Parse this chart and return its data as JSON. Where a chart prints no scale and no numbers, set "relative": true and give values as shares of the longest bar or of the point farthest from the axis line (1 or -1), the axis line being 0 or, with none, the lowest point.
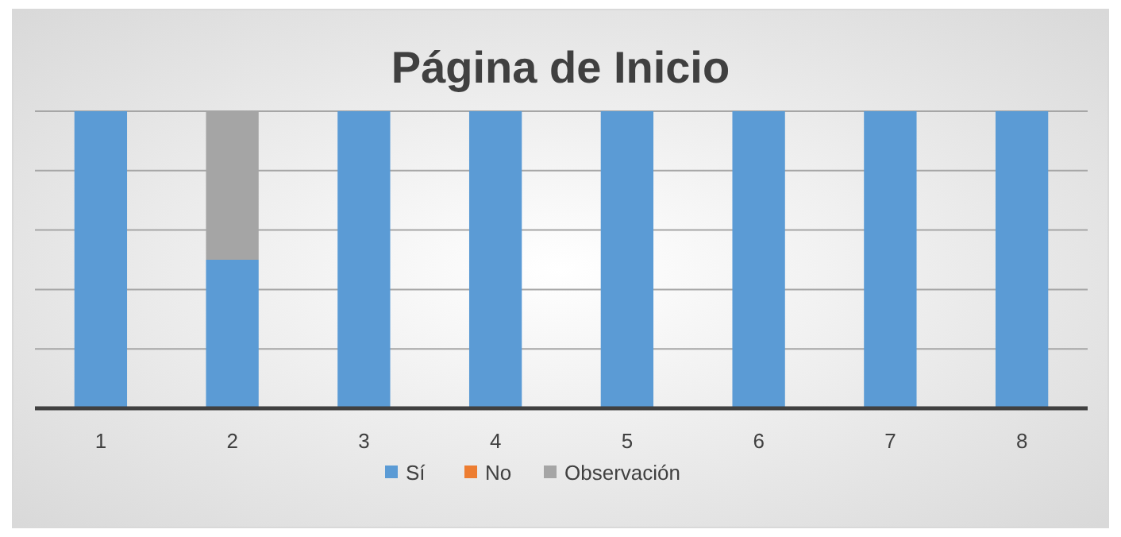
{
  "chart_data": {
    "type": "bar",
    "title": "Página de Inicio",
    "categories": [
      "1",
      "2",
      "3",
      "4",
      "5",
      "6",
      "7",
      "8"
    ],
    "stacked": true,
    "relative": true,
    "grid": true,
    "legend": "bottom",
    "series": [
      {
        "name": "Sí",
        "color": "#5b9bd5",
        "values": [
          1,
          0.5,
          1,
          1,
          1,
          1,
          1,
          1
        ]
      },
      {
        "name": "No",
        "color": "#ed7d31",
        "values": [
          0,
          0,
          0,
          0,
          0,
          0,
          0,
          0
        ]
      },
      {
        "name": "Observación",
        "color": "#a5a5a5",
        "values": [
          0,
          0.5,
          0,
          0,
          0,
          0,
          0,
          0
        ]
      }
    ]
  }
}
